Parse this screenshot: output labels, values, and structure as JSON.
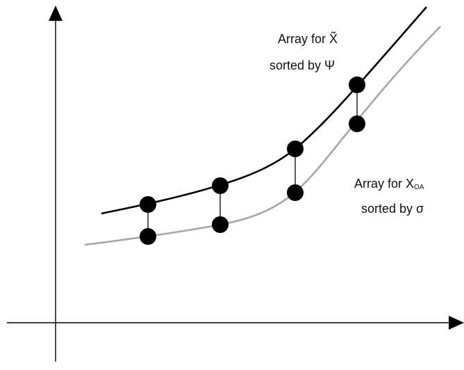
{
  "colors": {
    "upper_curve": "#000000",
    "lower_curve": "#a6a6a6",
    "axes": "#000000",
    "points": "#000000",
    "connectors": "#000000",
    "background": "#ffffff"
  },
  "labels": {
    "upper_line1_prefix": "Array for ",
    "upper_line1_symbol": "X̃",
    "upper_line2": "sorted by Ψ",
    "lower_line1_prefix": "Array for ",
    "lower_line1_symbol": "X",
    "lower_line1_subscript": "OA",
    "lower_line2": "sorted by σ"
  },
  "diagram": {
    "curves": [
      {
        "name": "upper-curve",
        "role": "Array for X̃ sorted by Ψ",
        "color": "#000000"
      },
      {
        "name": "lower-curve",
        "role": "Array for X_OA sorted by σ",
        "color": "#a6a6a6"
      }
    ],
    "point_pairs_count": 4
  }
}
